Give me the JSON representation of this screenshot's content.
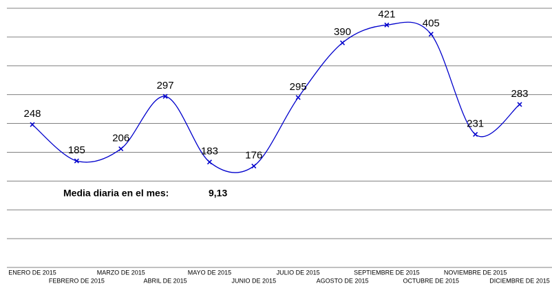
{
  "chart_data": {
    "type": "line",
    "categories": [
      "ENERO DE 2015",
      "FEBRERO DE 2015",
      "MARZO DE 2015",
      "ABRIL DE 2015",
      "MAYO DE 2015",
      "JUNIO DE 2015",
      "JULIO DE 2015",
      "AGOSTO DE 2015",
      "SEPTIEMBRE DE 2015",
      "OCTUBRE DE 2015",
      "NOVIEMBRE DE 2015",
      "DICIEMBRE DE 2015"
    ],
    "series": [
      {
        "name": null,
        "color": "#0000cc",
        "values": [
          248,
          185,
          206,
          297,
          183,
          176,
          295,
          390,
          421,
          405,
          231,
          283
        ]
      }
    ],
    "ylim": [
      0,
      450
    ],
    "yticks": [
      0,
      50,
      100,
      150,
      200,
      250,
      300,
      350,
      400,
      450
    ],
    "grid": true,
    "smooth": true,
    "annotation": {
      "text": "Media diaria en el mes:",
      "value": "9,13"
    }
  }
}
